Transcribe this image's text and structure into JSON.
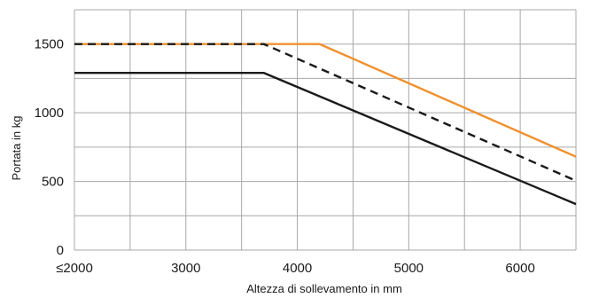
{
  "chart_data": {
    "type": "line",
    "xlabel": "Altezza di sollevamento in mm",
    "ylabel": "Portata in kg",
    "xlim": [
      2000,
      6500
    ],
    "ylim": [
      0,
      1750
    ],
    "x_ticks": [
      {
        "value": 2000,
        "label": "≤2000"
      },
      {
        "value": 3000,
        "label": "3000"
      },
      {
        "value": 4000,
        "label": "4000"
      },
      {
        "value": 5000,
        "label": "5000"
      },
      {
        "value": 6000,
        "label": "6000"
      }
    ],
    "y_ticks": [
      {
        "value": 0,
        "label": "0"
      },
      {
        "value": 500,
        "label": "500"
      },
      {
        "value": 1000,
        "label": "1000"
      },
      {
        "value": 1500,
        "label": "1500"
      }
    ],
    "x_grid": [
      2000,
      2500,
      3000,
      3500,
      4000,
      4500,
      5000,
      5500,
      6000,
      6500
    ],
    "y_grid": [
      0,
      250,
      500,
      750,
      1000,
      1250,
      1500,
      1750
    ],
    "grid": true,
    "series": [
      {
        "color": "#f0902e",
        "dash": "solid",
        "x": [
          2000,
          4200,
          6500
        ],
        "y": [
          1500,
          1500,
          680
        ]
      },
      {
        "color": "#1a1a1a",
        "dash": "dashed",
        "x": [
          2000,
          3700,
          6500
        ],
        "y": [
          1500,
          1500,
          505
        ]
      },
      {
        "color": "#1a1a1a",
        "dash": "solid",
        "x": [
          2000,
          3700,
          6500
        ],
        "y": [
          1290,
          1290,
          335
        ]
      }
    ]
  }
}
